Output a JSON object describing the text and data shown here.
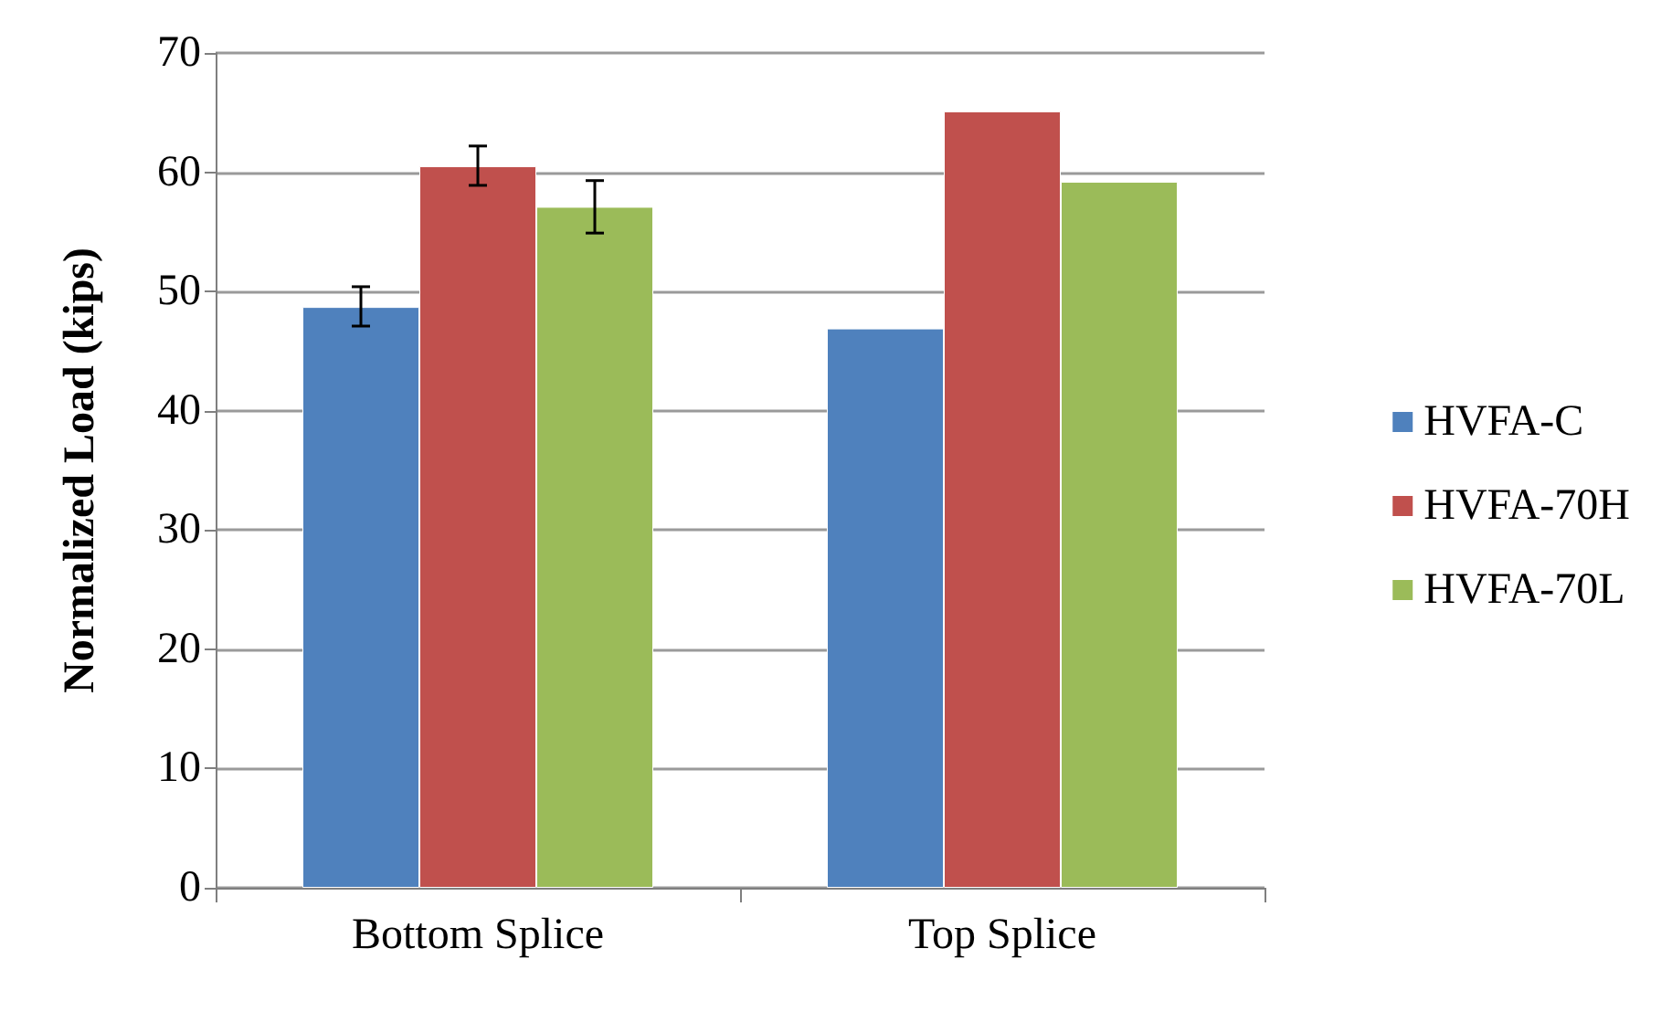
{
  "chart_data": {
    "type": "bar",
    "ylabel": "Normalized Load (kips)",
    "categories": [
      "Bottom Splice",
      "Top Splice"
    ],
    "series": [
      {
        "name": "HVFA-C",
        "color": "#4f81bd",
        "values": [
          48.7,
          46.9
        ],
        "errors": [
          [
            47.1,
            50.4
          ],
          null
        ]
      },
      {
        "name": "HVFA-70H",
        "color": "#c0504d",
        "values": [
          60.5,
          65.1
        ],
        "errors": [
          [
            58.9,
            62.2
          ],
          null
        ]
      },
      {
        "name": "HVFA-70L",
        "color": "#9bbb59",
        "values": [
          57.1,
          59.2
        ],
        "errors": [
          [
            54.9,
            59.3
          ],
          null
        ]
      }
    ],
    "ylim": [
      0,
      70
    ],
    "yticks": [
      0,
      10,
      20,
      30,
      40,
      50,
      60,
      70
    ],
    "grid": "y",
    "legend": "right"
  }
}
